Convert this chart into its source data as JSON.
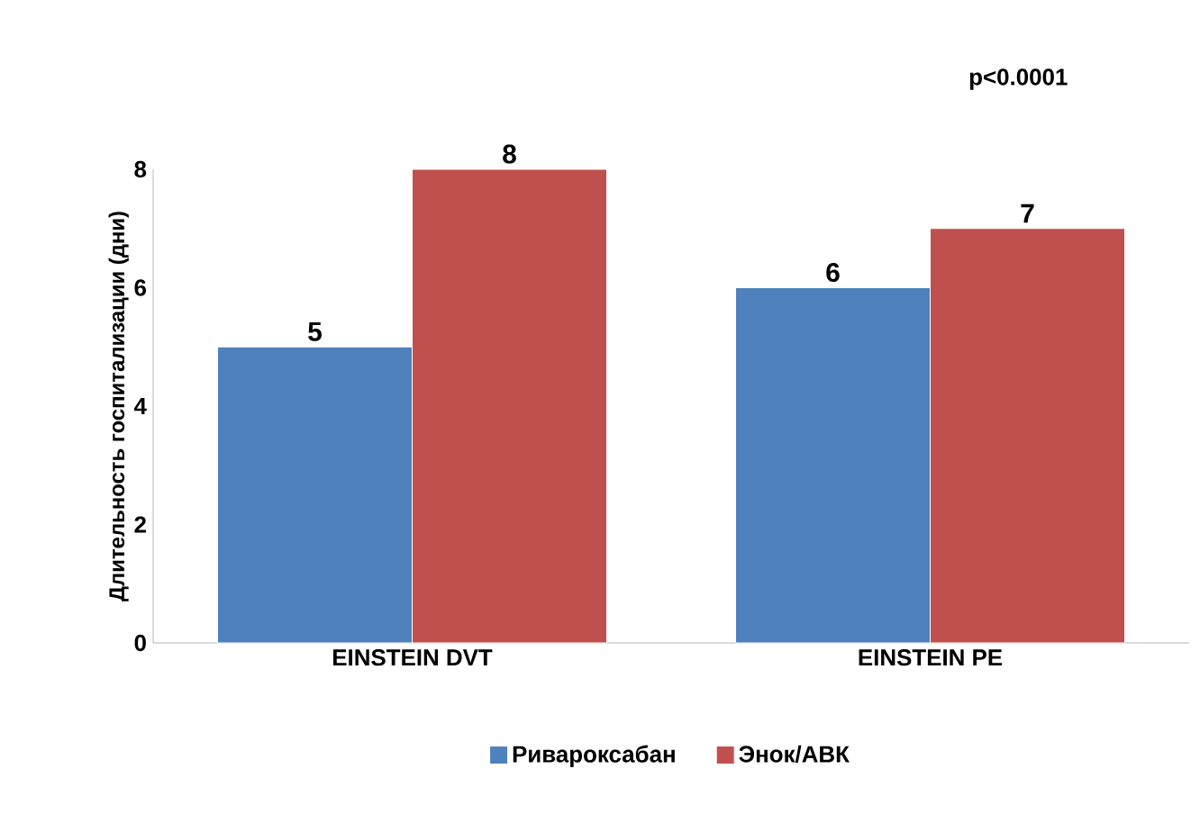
{
  "chart_data": {
    "type": "bar",
    "ylabel": "Длительность госпитализации (дни)",
    "categories": [
      "EINSTEIN DVT",
      "EINSTEIN PE"
    ],
    "series": [
      {
        "name": "Ривароксабан",
        "color": "#4f81bd",
        "values": [
          5,
          6
        ]
      },
      {
        "name": "Энок/АВК",
        "color": "#c0504d",
        "values": [
          8,
          7
        ]
      }
    ],
    "ylim": [
      0,
      8
    ],
    "yticks": [
      0,
      2,
      4,
      6,
      8
    ],
    "data_labels": true,
    "legend": "bottom",
    "grid": false,
    "annotations": [
      "p<0.0001"
    ]
  }
}
